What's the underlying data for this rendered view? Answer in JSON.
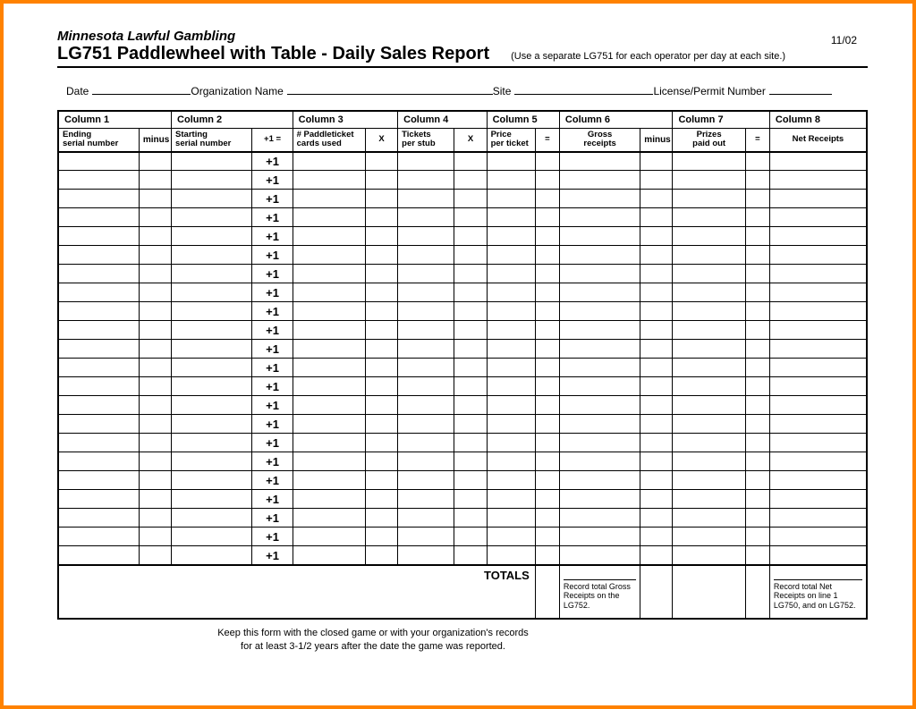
{
  "corner_date": "11/02",
  "header": {
    "line1": "Minnesota Lawful Gambling",
    "line2": "LG751 Paddlewheel with Table - Daily Sales Report",
    "note": "(Use a separate LG751 for each operator per day at each site.)"
  },
  "info": {
    "date_label": "Date",
    "org_label": "Organization Name",
    "site_label": "Site",
    "lic_label": "License/Permit Number"
  },
  "columns": {
    "c1": "Column 1",
    "c2": "Column 2",
    "c3": "Column 3",
    "c4": "Column 4",
    "c5": "Column 5",
    "c6": "Column 6",
    "c7": "Column 7",
    "c8": "Column 8"
  },
  "subheads": {
    "c1a": "Ending",
    "c1b": "serial number",
    "c2a": "Starting",
    "c2b": "serial number",
    "c3a": "# Paddleticket",
    "c3b": "cards used",
    "c4a": "Tickets",
    "c4b": "per stub",
    "c5a": "Price",
    "c5b": "per ticket",
    "c6a": "Gross",
    "c6b": "receipts",
    "c7a": "Prizes",
    "c7b": "paid out",
    "c8": "Net Receipts"
  },
  "ops": {
    "minus": "minus",
    "plus1eq": "+1 =",
    "x1": "X",
    "x2": "X",
    "eq1": "=",
    "minus2": "minus",
    "eq2": "="
  },
  "plusone": "+1",
  "row_count": 22,
  "totals": {
    "label": "TOTALS",
    "gross_note": "Record total Gross Receipts on the LG752.",
    "net_note": "Record total Net Receipts on line 1 LG750, and on LG752."
  },
  "footer": {
    "l1": "Keep this form with the closed game or with your organization's records",
    "l2": "for at least 3-1/2 years after the date the game was reported."
  },
  "style": {
    "border_color": "#ff8200",
    "text_color": "#000000",
    "background": "#ffffff",
    "col_widths_pct": [
      10,
      4,
      10,
      5,
      9,
      4,
      7,
      4,
      6,
      3,
      10,
      4,
      9,
      3,
      12
    ]
  }
}
